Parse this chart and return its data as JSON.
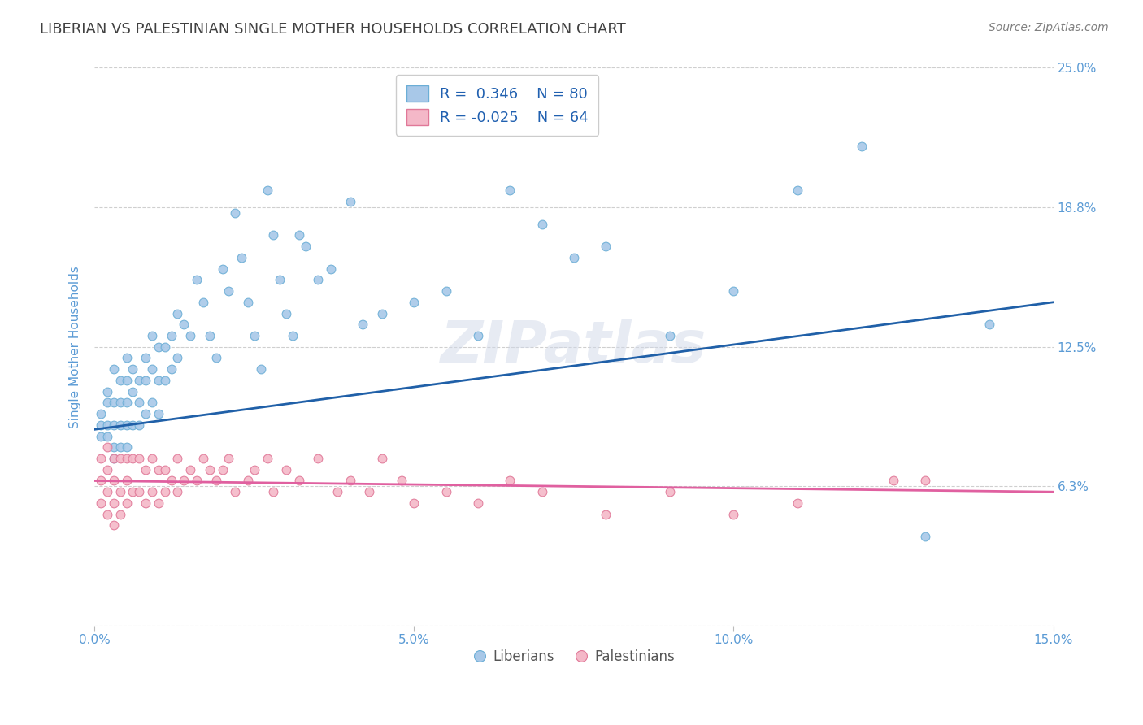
{
  "title": "LIBERIAN VS PALESTINIAN SINGLE MOTHER HOUSEHOLDS CORRELATION CHART",
  "source": "Source: ZipAtlas.com",
  "ylabel": "Single Mother Households",
  "xlim": [
    0,
    0.15
  ],
  "ylim": [
    0,
    0.25
  ],
  "xticks": [
    0.0,
    0.05,
    0.1,
    0.15
  ],
  "xtick_labels": [
    "0.0%",
    "5.0%",
    "10.0%",
    "15.0%"
  ],
  "ytick_vals": [
    0.0,
    0.0625,
    0.125,
    0.1875,
    0.25
  ],
  "ytick_labels_right": [
    "",
    "6.3%",
    "12.5%",
    "18.8%",
    "25.0%"
  ],
  "liberian_color": "#a8c8e8",
  "liberian_edge": "#6baed6",
  "palestinian_color": "#f4b8c8",
  "palestinian_edge": "#e07898",
  "trend_liberian_color": "#2060a8",
  "trend_palestinian_color": "#e060a0",
  "R_liberian": 0.346,
  "N_liberian": 80,
  "R_palestinian": -0.025,
  "N_palestinian": 64,
  "legend_label_liberian": "Liberians",
  "legend_label_palestinian": "Palestinians",
  "watermark": "ZIPatlas",
  "background_color": "#ffffff",
  "grid_color": "#bbbbbb",
  "title_color": "#404040",
  "axis_label_color": "#5b9bd5",
  "source_color": "#808080",
  "legend_text_color": "#2060b0",
  "lib_trend_start_y": 0.088,
  "lib_trend_end_y": 0.145,
  "pal_trend_start_y": 0.065,
  "pal_trend_end_y": 0.06,
  "liberian_points_x": [
    0.001,
    0.001,
    0.001,
    0.002,
    0.002,
    0.002,
    0.002,
    0.003,
    0.003,
    0.003,
    0.003,
    0.003,
    0.004,
    0.004,
    0.004,
    0.004,
    0.005,
    0.005,
    0.005,
    0.005,
    0.005,
    0.006,
    0.006,
    0.006,
    0.007,
    0.007,
    0.007,
    0.008,
    0.008,
    0.008,
    0.009,
    0.009,
    0.009,
    0.01,
    0.01,
    0.01,
    0.011,
    0.011,
    0.012,
    0.012,
    0.013,
    0.013,
    0.014,
    0.015,
    0.016,
    0.017,
    0.018,
    0.019,
    0.02,
    0.021,
    0.022,
    0.023,
    0.024,
    0.025,
    0.026,
    0.027,
    0.028,
    0.029,
    0.03,
    0.031,
    0.032,
    0.033,
    0.035,
    0.037,
    0.04,
    0.042,
    0.045,
    0.05,
    0.055,
    0.06,
    0.065,
    0.07,
    0.075,
    0.08,
    0.09,
    0.1,
    0.11,
    0.12,
    0.13,
    0.14
  ],
  "liberian_points_y": [
    0.095,
    0.09,
    0.085,
    0.105,
    0.1,
    0.09,
    0.085,
    0.115,
    0.1,
    0.09,
    0.08,
    0.075,
    0.11,
    0.1,
    0.09,
    0.08,
    0.12,
    0.11,
    0.1,
    0.09,
    0.08,
    0.115,
    0.105,
    0.09,
    0.11,
    0.1,
    0.09,
    0.12,
    0.11,
    0.095,
    0.13,
    0.115,
    0.1,
    0.125,
    0.11,
    0.095,
    0.125,
    0.11,
    0.13,
    0.115,
    0.14,
    0.12,
    0.135,
    0.13,
    0.155,
    0.145,
    0.13,
    0.12,
    0.16,
    0.15,
    0.185,
    0.165,
    0.145,
    0.13,
    0.115,
    0.195,
    0.175,
    0.155,
    0.14,
    0.13,
    0.175,
    0.17,
    0.155,
    0.16,
    0.19,
    0.135,
    0.14,
    0.145,
    0.15,
    0.13,
    0.195,
    0.18,
    0.165,
    0.17,
    0.13,
    0.15,
    0.195,
    0.215,
    0.04,
    0.135
  ],
  "palestinian_points_x": [
    0.001,
    0.001,
    0.001,
    0.002,
    0.002,
    0.002,
    0.002,
    0.003,
    0.003,
    0.003,
    0.003,
    0.004,
    0.004,
    0.004,
    0.005,
    0.005,
    0.005,
    0.006,
    0.006,
    0.007,
    0.007,
    0.008,
    0.008,
    0.009,
    0.009,
    0.01,
    0.01,
    0.011,
    0.011,
    0.012,
    0.013,
    0.013,
    0.014,
    0.015,
    0.016,
    0.017,
    0.018,
    0.019,
    0.02,
    0.021,
    0.022,
    0.024,
    0.025,
    0.027,
    0.028,
    0.03,
    0.032,
    0.035,
    0.038,
    0.04,
    0.043,
    0.045,
    0.048,
    0.05,
    0.055,
    0.06,
    0.065,
    0.07,
    0.08,
    0.09,
    0.1,
    0.11,
    0.125,
    0.13
  ],
  "palestinian_points_y": [
    0.075,
    0.065,
    0.055,
    0.08,
    0.07,
    0.06,
    0.05,
    0.075,
    0.065,
    0.055,
    0.045,
    0.075,
    0.06,
    0.05,
    0.075,
    0.065,
    0.055,
    0.075,
    0.06,
    0.075,
    0.06,
    0.07,
    0.055,
    0.075,
    0.06,
    0.07,
    0.055,
    0.07,
    0.06,
    0.065,
    0.075,
    0.06,
    0.065,
    0.07,
    0.065,
    0.075,
    0.07,
    0.065,
    0.07,
    0.075,
    0.06,
    0.065,
    0.07,
    0.075,
    0.06,
    0.07,
    0.065,
    0.075,
    0.06,
    0.065,
    0.06,
    0.075,
    0.065,
    0.055,
    0.06,
    0.055,
    0.065,
    0.06,
    0.05,
    0.06,
    0.05,
    0.055,
    0.065,
    0.065
  ]
}
